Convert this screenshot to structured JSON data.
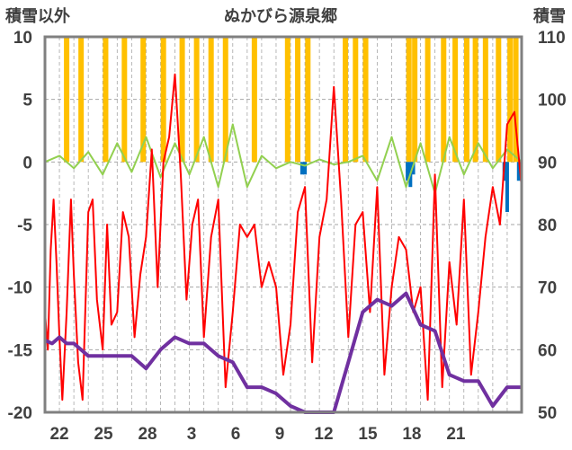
{
  "chart_data": {
    "type": "line",
    "title": "ぬかびら源泉郷",
    "y_left_label": "積雪以外",
    "y_right_label": "積雪",
    "y_left_ticks": [
      10,
      5,
      0,
      -5,
      -10,
      -15,
      -20
    ],
    "y_right_ticks": [
      110,
      100,
      90,
      80,
      70,
      60,
      50
    ],
    "ylim_left": [
      -20,
      10
    ],
    "ylim_right": [
      50,
      110
    ],
    "x_ticks": [
      "22",
      "25",
      "28",
      "3",
      "6",
      "9",
      "12",
      "15",
      "18",
      "21"
    ],
    "grid": "horizontal dashed, vertical dashed",
    "colors": {
      "precip": "#FFC000",
      "temp": "#FF0000",
      "wind": "#92D050",
      "snowfall": "#0070C0",
      "snow_depth": "#7030A0",
      "frame": "#808080"
    },
    "series": [
      {
        "axis": "right",
        "x": [
          0,
          0.5,
          1,
          1.5,
          2,
          3,
          4,
          5,
          6,
          7,
          8,
          9,
          10,
          11,
          12,
          13,
          14,
          15,
          16,
          17,
          18,
          19,
          20,
          21,
          22,
          23,
          24,
          25,
          26,
          27,
          28,
          29,
          30,
          31,
          32,
          33
        ],
        "values": [
          61.5,
          61,
          62,
          61,
          61,
          59,
          59,
          59,
          59,
          57,
          60,
          62,
          61,
          61,
          59,
          58,
          54,
          54,
          53,
          51,
          50,
          50,
          50,
          58,
          66,
          68,
          67,
          69,
          64,
          63,
          56,
          55,
          55,
          51,
          54,
          54
        ]
      },
      {
        "axis": "left",
        "x": [
          0,
          0.2,
          0.4,
          0.6,
          0.8,
          1,
          1.2,
          1.5,
          1.8,
          2,
          2.3,
          2.6,
          3,
          3.3,
          3.6,
          4,
          4.3,
          4.6,
          5,
          5.4,
          5.8,
          6.2,
          6.6,
          7,
          7.4,
          7.8,
          8.2,
          8.6,
          9,
          9.4,
          9.8,
          10.2,
          10.6,
          11,
          11.5,
          12,
          12.5,
          13,
          13.5,
          14,
          14.5,
          15,
          15.5,
          16,
          16.5,
          17,
          17.5,
          18,
          18.5,
          19,
          19.5,
          20,
          20.5,
          21,
          21.5,
          22,
          22.5,
          23,
          23.5,
          24,
          24.5,
          25,
          25.5,
          26,
          26.5,
          27,
          27.5,
          28,
          28.5,
          29,
          29.5,
          30,
          30.5,
          31,
          31.5,
          32,
          32.5,
          33
        ],
        "values": [
          -12,
          -15,
          -7,
          -3,
          -8,
          -14,
          -19,
          -12,
          -3,
          -9,
          -16,
          -19,
          -4,
          -3,
          -11,
          -15,
          -5,
          -13,
          -12,
          -4,
          -6,
          -14,
          -9,
          -6,
          1,
          -10,
          0,
          2,
          7,
          -1,
          -11,
          -5,
          -3,
          -14,
          -6,
          -3,
          -18,
          -12,
          -5,
          -6,
          -5,
          -10,
          -8,
          -10,
          -17,
          -13,
          -4,
          -2,
          -16,
          -6,
          -3,
          6,
          -3,
          -14,
          -5,
          -4,
          -12,
          -2,
          -17,
          -10,
          -6,
          -7,
          -12,
          -10,
          -19,
          -1,
          -18,
          -8,
          -13,
          -3,
          -17,
          -12,
          -6,
          -2,
          -5,
          3,
          4,
          -2
        ]
      },
      {
        "axis": "left",
        "x": [
          0,
          1,
          2,
          3,
          4,
          5,
          6,
          7,
          8,
          9,
          10,
          11,
          12,
          13,
          14,
          15,
          16,
          17,
          18,
          19,
          20,
          21,
          22,
          23,
          24,
          25,
          26,
          27,
          28,
          29,
          30,
          31,
          32,
          33
        ],
        "values": [
          0,
          0.5,
          -0.5,
          0.8,
          -1,
          1.5,
          -0.8,
          2,
          -1.2,
          1.5,
          -1,
          2,
          -2,
          3,
          -2,
          0.5,
          -0.5,
          0,
          -0.3,
          0.2,
          -0.2,
          0,
          0.5,
          -1.5,
          2,
          -2,
          1.5,
          -2.5,
          2,
          -1,
          1.5,
          -0.5,
          1,
          0
        ]
      },
      {
        "axis": "left",
        "x": [
          1.5,
          2.5,
          4.2,
          5.5,
          6.8,
          8.2,
          9.5,
          10.5,
          11.5,
          12.5,
          14.5,
          16.8,
          17.5,
          18.2,
          20.8,
          21.5,
          22.2,
          25.2,
          25.6,
          26.5,
          27.6,
          28.4,
          29.2,
          29.8,
          30.5,
          31.4,
          32.2,
          32.6
        ],
        "values": [
          10,
          10,
          10,
          10,
          10,
          10,
          10,
          10,
          10,
          10,
          10,
          10,
          10,
          10,
          10,
          10,
          10,
          10,
          10,
          10,
          10,
          10,
          10,
          10,
          10,
          10,
          10,
          10
        ]
      },
      {
        "axis": "left",
        "x": [
          17.8,
          18.0,
          25.1,
          25.3,
          25.5,
          31.8,
          32.0,
          32.8
        ],
        "values": [
          -1,
          -1,
          -1.5,
          -2,
          -1,
          -1.5,
          -4,
          -1.5
        ]
      }
    ]
  }
}
